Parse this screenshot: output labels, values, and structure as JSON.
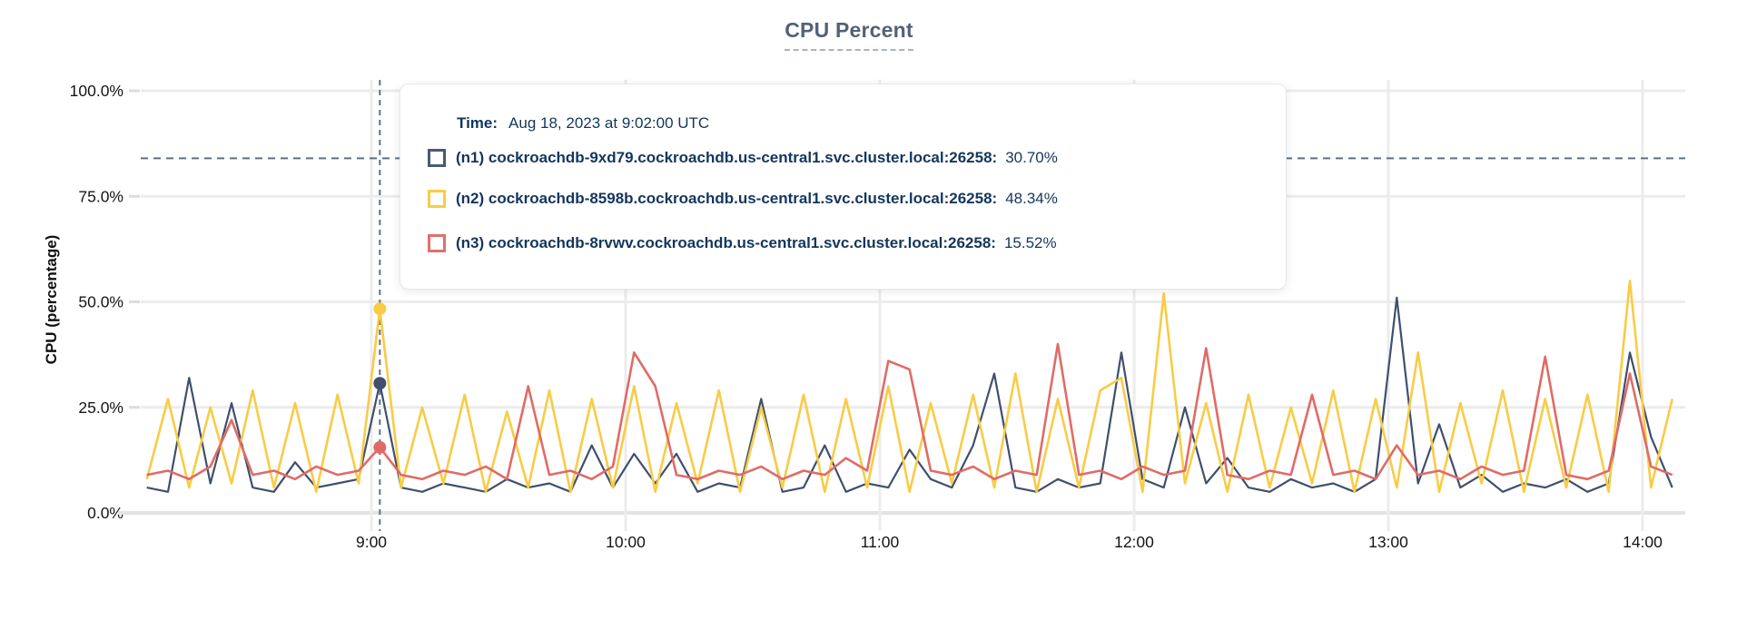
{
  "title": "CPU Percent",
  "tooltip": {
    "time_label": "Time:",
    "time_value": "Aug 18, 2023 at 9:02:00 UTC",
    "rows": [
      {
        "name": "(n1) cockroachdb-9xd79.cockroachdb.us-central1.svc.cluster.local:26258:",
        "value": "30.70%",
        "color": "#4a5a75"
      },
      {
        "name": "(n2) cockroachdb-8598b.cockroachdb.us-central1.svc.cluster.local:26258:",
        "value": "48.34%",
        "color": "#f5ce45"
      },
      {
        "name": "(n3) cockroachdb-8rvwv.cockroachdb.us-central1.svc.cluster.local:26258:",
        "value": "15.52%",
        "color": "#e07070"
      }
    ]
  },
  "chart_data": {
    "type": "line",
    "title": "CPU Percent",
    "xlabel": "",
    "ylabel": "CPU (percentage)",
    "ylim": [
      0,
      100
    ],
    "yticks": [
      100,
      75,
      50,
      25,
      0
    ],
    "ytick_labels": [
      "100.0%",
      "75.0%",
      "50.0%",
      "25.0%",
      "0.0%"
    ],
    "xtick_labels": [
      "9:00",
      "10:00",
      "11:00",
      "12:00",
      "13:00",
      "14:00"
    ],
    "grid": true,
    "legend_position": "tooltip-overlay",
    "threshold_line_pct": 84,
    "selected": {
      "time": "9:02",
      "time_text": "Aug 18, 2023 at 9:02:00 UTC",
      "values": [
        30.7,
        48.34,
        15.52
      ]
    },
    "x_times": [
      "8:07",
      "8:12",
      "8:17",
      "8:22",
      "8:27",
      "8:32",
      "8:37",
      "8:42",
      "8:47",
      "8:52",
      "8:57",
      "9:02",
      "9:07",
      "9:12",
      "9:17",
      "9:22",
      "9:27",
      "9:32",
      "9:37",
      "9:42",
      "9:47",
      "9:52",
      "9:57",
      "10:02",
      "10:07",
      "10:12",
      "10:17",
      "10:22",
      "10:27",
      "10:32",
      "10:37",
      "10:42",
      "10:47",
      "10:52",
      "10:57",
      "11:02",
      "11:07",
      "11:12",
      "11:17",
      "11:22",
      "11:27",
      "11:32",
      "11:37",
      "11:42",
      "11:47",
      "11:52",
      "11:57",
      "12:02",
      "12:07",
      "12:12",
      "12:17",
      "12:22",
      "12:27",
      "12:32",
      "12:37",
      "12:42",
      "12:47",
      "12:52",
      "12:57",
      "13:02",
      "13:07",
      "13:12",
      "13:17",
      "13:22",
      "13:27",
      "13:32",
      "13:37",
      "13:42",
      "13:47",
      "13:52",
      "13:57",
      "14:02",
      "14:07"
    ],
    "series": [
      {
        "name": "(n1) cockroachdb-9xd79.cockroachdb.us-central1.svc.cluster.local:26258",
        "color": "#404f6d",
        "values": [
          6,
          5,
          32,
          7,
          26,
          6,
          5,
          12,
          6,
          7,
          8,
          30.7,
          6,
          5,
          7,
          6,
          5,
          8,
          6,
          7,
          5,
          16,
          6,
          14,
          7,
          14,
          5,
          7,
          6,
          27,
          5,
          6,
          16,
          5,
          7,
          6,
          15,
          8,
          6,
          16,
          33,
          6,
          5,
          8,
          6,
          7,
          38,
          8,
          6,
          25,
          7,
          13,
          6,
          5,
          8,
          6,
          7,
          5,
          8,
          51,
          7,
          21,
          6,
          9,
          5,
          7,
          6,
          8,
          5,
          7,
          38,
          18,
          6
        ]
      },
      {
        "name": "(n2) cockroachdb-8598b.cockroachdb.us-central1.svc.cluster.local:26258",
        "color": "#f8cc46",
        "values": [
          8,
          27,
          6,
          25,
          7,
          29,
          6,
          26,
          5,
          28,
          7,
          48.34,
          6,
          25,
          7,
          28,
          5,
          24,
          6,
          29,
          5,
          27,
          6,
          30,
          5,
          26,
          7,
          29,
          5,
          25,
          6,
          28,
          5,
          27,
          6,
          30,
          5,
          26,
          7,
          28,
          6,
          33,
          5,
          27,
          6,
          29,
          32,
          5,
          52,
          7,
          26,
          5,
          28,
          6,
          25,
          7,
          29,
          5,
          27,
          6,
          38,
          5,
          26,
          7,
          29,
          5,
          27,
          6,
          28,
          5,
          55,
          6,
          27
        ]
      },
      {
        "name": "(n3) cockroachdb-8rvwv.cockroachdb.us-central1.svc.cluster.local:26258",
        "color": "#e06b66",
        "values": [
          9,
          10,
          8,
          11,
          22,
          9,
          10,
          8,
          11,
          9,
          10,
          15.52,
          9,
          8,
          10,
          9,
          11,
          8,
          30,
          9,
          10,
          8,
          11,
          38,
          30,
          9,
          8,
          10,
          9,
          11,
          8,
          10,
          9,
          13,
          10,
          36,
          34,
          10,
          9,
          11,
          8,
          10,
          9,
          40,
          9,
          10,
          8,
          11,
          9,
          10,
          39,
          9,
          8,
          10,
          9,
          28,
          9,
          10,
          8,
          16,
          9,
          10,
          8,
          11,
          9,
          10,
          37,
          9,
          8,
          10,
          33,
          11,
          9
        ]
      }
    ]
  }
}
